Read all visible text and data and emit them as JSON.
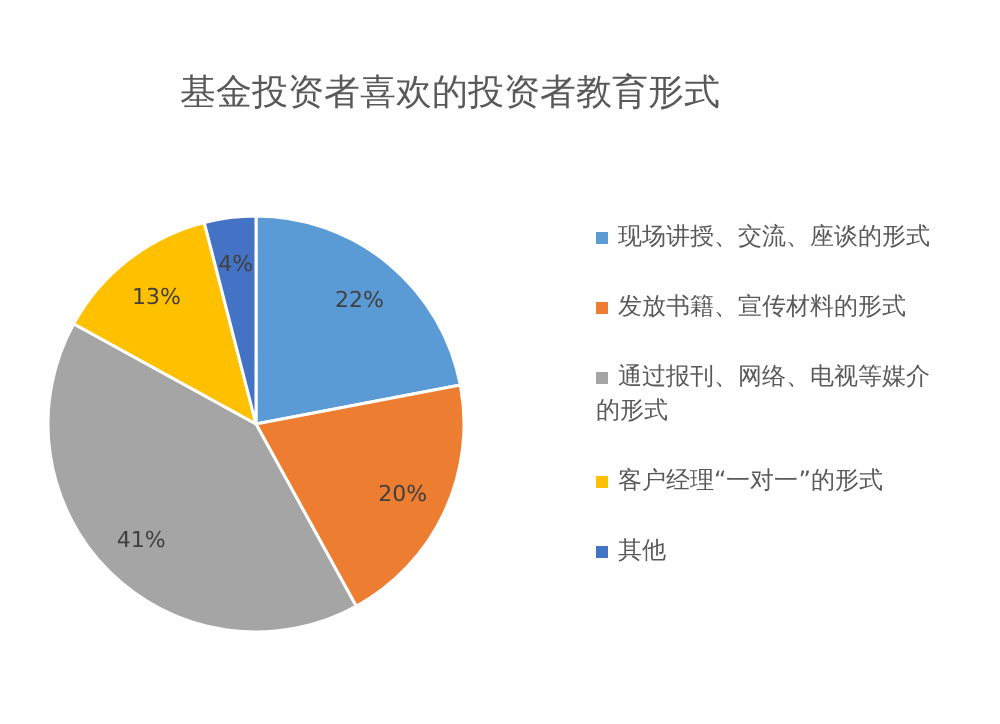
{
  "chart_data": {
    "type": "pie",
    "title": "基金投资者喜欢的投资者教育形式",
    "categories": [
      "现场讲授、交流、座谈的形式",
      "发放书籍、宣传材料的形式",
      "通过报刊、网络、电视等媒介的形式",
      "客户经理“一对一”的形式",
      "其他"
    ],
    "values": [
      22,
      20,
      41,
      13,
      4
    ],
    "colors": [
      "#5b9bd5",
      "#ed7d31",
      "#a5a5a5",
      "#ffc000",
      "#4472c4"
    ],
    "value_labels": [
      "22%",
      "20%",
      "41%",
      "13%",
      "4%"
    ],
    "legend": "right"
  }
}
